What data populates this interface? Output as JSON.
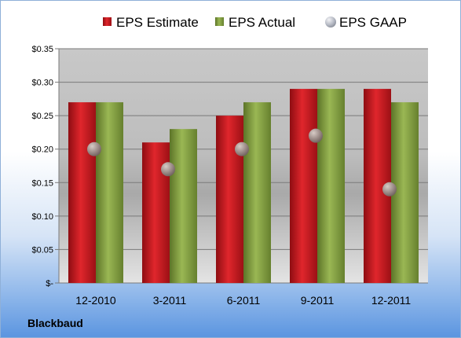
{
  "company": "Blackbaud",
  "chart_data": {
    "type": "bar",
    "title": "",
    "xlabel": "",
    "ylabel": "",
    "categories": [
      "12-2010",
      "3-2011",
      "6-2011",
      "9-2011",
      "12-2011"
    ],
    "series": [
      {
        "name": "EPS Estimate",
        "kind": "bar",
        "color": "#c0151b",
        "values": [
          0.27,
          0.21,
          0.25,
          0.29,
          0.29
        ]
      },
      {
        "name": "EPS Actual",
        "kind": "bar",
        "color": "#7f9a3e",
        "values": [
          0.27,
          0.23,
          0.27,
          0.29,
          0.27
        ]
      },
      {
        "name": "EPS GAAP",
        "kind": "scatter",
        "color": "#9a8a86",
        "values": [
          0.2,
          0.17,
          0.2,
          0.22,
          0.14
        ]
      }
    ],
    "ylim": [
      0,
      0.35
    ],
    "yticks": [
      0,
      0.05,
      0.1,
      0.15,
      0.2,
      0.25,
      0.3,
      0.35
    ],
    "ytick_labels": [
      "$-",
      "$0.05",
      "$0.10",
      "$0.15",
      "$0.20",
      "$0.25",
      "$0.30",
      "$0.35"
    ],
    "grid": true,
    "legend_position": "top"
  }
}
